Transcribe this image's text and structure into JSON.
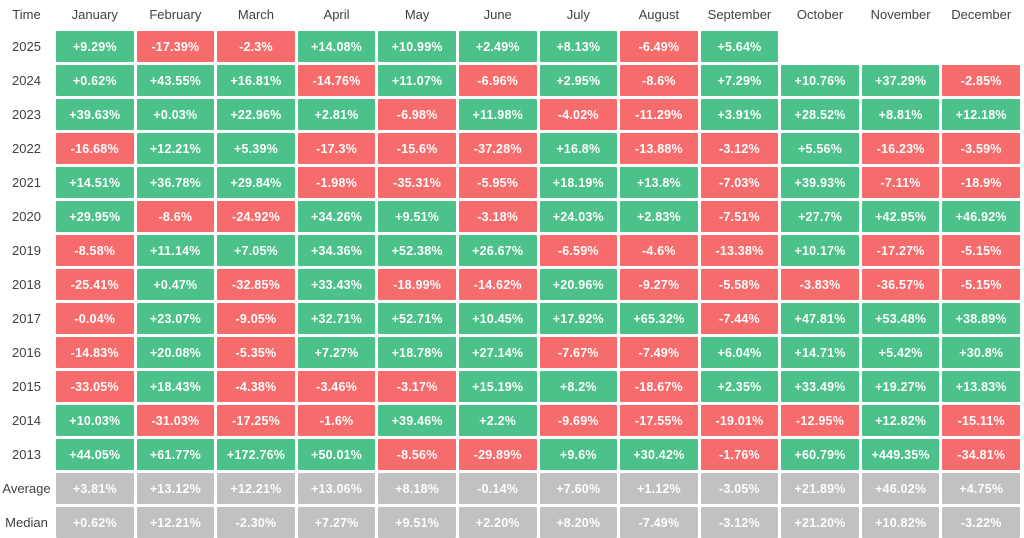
{
  "colors": {
    "positive": "#4cc189",
    "negative": "#f66c6c",
    "summary": "#c1c1c1",
    "cell_text": "#fdfdfd",
    "label_text": "#414141",
    "background": "#ffffff"
  },
  "table": {
    "time_header": "Time",
    "columns": [
      "January",
      "February",
      "March",
      "April",
      "May",
      "June",
      "July",
      "August",
      "September",
      "October",
      "November",
      "December"
    ],
    "rows": [
      {
        "label": "2025",
        "type": "year",
        "values": [
          "+9.29%",
          "-17.39%",
          "-2.3%",
          "+14.08%",
          "+10.99%",
          "+2.49%",
          "+8.13%",
          "-6.49%",
          "+5.64%",
          "",
          "",
          ""
        ]
      },
      {
        "label": "2024",
        "type": "year",
        "values": [
          "+0.62%",
          "+43.55%",
          "+16.81%",
          "-14.76%",
          "+11.07%",
          "-6.96%",
          "+2.95%",
          "-8.6%",
          "+7.29%",
          "+10.76%",
          "+37.29%",
          "-2.85%"
        ]
      },
      {
        "label": "2023",
        "type": "year",
        "values": [
          "+39.63%",
          "+0.03%",
          "+22.96%",
          "+2.81%",
          "-6.98%",
          "+11.98%",
          "-4.02%",
          "-11.29%",
          "+3.91%",
          "+28.52%",
          "+8.81%",
          "+12.18%"
        ]
      },
      {
        "label": "2022",
        "type": "year",
        "values": [
          "-16.68%",
          "+12.21%",
          "+5.39%",
          "-17.3%",
          "-15.6%",
          "-37.28%",
          "+16.8%",
          "-13.88%",
          "-3.12%",
          "+5.56%",
          "-16.23%",
          "-3.59%"
        ]
      },
      {
        "label": "2021",
        "type": "year",
        "values": [
          "+14.51%",
          "+36.78%",
          "+29.84%",
          "-1.98%",
          "-35.31%",
          "-5.95%",
          "+18.19%",
          "+13.8%",
          "-7.03%",
          "+39.93%",
          "-7.11%",
          "-18.9%"
        ]
      },
      {
        "label": "2020",
        "type": "year",
        "values": [
          "+29.95%",
          "-8.6%",
          "-24.92%",
          "+34.26%",
          "+9.51%",
          "-3.18%",
          "+24.03%",
          "+2.83%",
          "-7.51%",
          "+27.7%",
          "+42.95%",
          "+46.92%"
        ]
      },
      {
        "label": "2019",
        "type": "year",
        "values": [
          "-8.58%",
          "+11.14%",
          "+7.05%",
          "+34.36%",
          "+52.38%",
          "+26.67%",
          "-6.59%",
          "-4.6%",
          "-13.38%",
          "+10.17%",
          "-17.27%",
          "-5.15%"
        ]
      },
      {
        "label": "2018",
        "type": "year",
        "values": [
          "-25.41%",
          "+0.47%",
          "-32.85%",
          "+33.43%",
          "-18.99%",
          "-14.62%",
          "+20.96%",
          "-9.27%",
          "-5.58%",
          "-3.83%",
          "-36.57%",
          "-5.15%"
        ]
      },
      {
        "label": "2017",
        "type": "year",
        "values": [
          "-0.04%",
          "+23.07%",
          "-9.05%",
          "+32.71%",
          "+52.71%",
          "+10.45%",
          "+17.92%",
          "+65.32%",
          "-7.44%",
          "+47.81%",
          "+53.48%",
          "+38.89%"
        ]
      },
      {
        "label": "2016",
        "type": "year",
        "values": [
          "-14.83%",
          "+20.08%",
          "-5.35%",
          "+7.27%",
          "+18.78%",
          "+27.14%",
          "-7.67%",
          "-7.49%",
          "+6.04%",
          "+14.71%",
          "+5.42%",
          "+30.8%"
        ]
      },
      {
        "label": "2015",
        "type": "year",
        "values": [
          "-33.05%",
          "+18.43%",
          "-4.38%",
          "-3.46%",
          "-3.17%",
          "+15.19%",
          "+8.2%",
          "-18.67%",
          "+2.35%",
          "+33.49%",
          "+19.27%",
          "+13.83%"
        ]
      },
      {
        "label": "2014",
        "type": "year",
        "values": [
          "+10.03%",
          "-31.03%",
          "-17.25%",
          "-1.6%",
          "+39.46%",
          "+2.2%",
          "-9.69%",
          "-17.55%",
          "-19.01%",
          "-12.95%",
          "+12.82%",
          "-15.11%"
        ]
      },
      {
        "label": "2013",
        "type": "year",
        "values": [
          "+44.05%",
          "+61.77%",
          "+172.76%",
          "+50.01%",
          "-8.56%",
          "-29.89%",
          "+9.6%",
          "+30.42%",
          "-1.76%",
          "+60.79%",
          "+449.35%",
          "-34.81%"
        ]
      },
      {
        "label": "Average",
        "type": "summary",
        "values": [
          "+3.81%",
          "+13.12%",
          "+12.21%",
          "+13.06%",
          "+8.18%",
          "-0.14%",
          "+7.60%",
          "+1.12%",
          "-3.05%",
          "+21.89%",
          "+46.02%",
          "+4.75%"
        ]
      },
      {
        "label": "Median",
        "type": "summary",
        "values": [
          "+0.62%",
          "+12.21%",
          "-2.30%",
          "+7.27%",
          "+9.51%",
          "+2.20%",
          "+8.20%",
          "-7.49%",
          "-3.12%",
          "+21.20%",
          "+10.82%",
          "-3.22%"
        ]
      }
    ]
  },
  "chart_data": {
    "type": "heatmap",
    "categories": [
      "January",
      "February",
      "March",
      "April",
      "May",
      "June",
      "July",
      "August",
      "September",
      "October",
      "November",
      "December"
    ],
    "unit": "%",
    "legend_position": "none",
    "rows": [
      {
        "name": "2025",
        "values": [
          9.29,
          -17.39,
          -2.3,
          14.08,
          10.99,
          2.49,
          8.13,
          -6.49,
          5.64,
          null,
          null,
          null
        ]
      },
      {
        "name": "2024",
        "values": [
          0.62,
          43.55,
          16.81,
          -14.76,
          11.07,
          -6.96,
          2.95,
          -8.6,
          7.29,
          10.76,
          37.29,
          -2.85
        ]
      },
      {
        "name": "2023",
        "values": [
          39.63,
          0.03,
          22.96,
          2.81,
          -6.98,
          11.98,
          -4.02,
          -11.29,
          3.91,
          28.52,
          8.81,
          12.18
        ]
      },
      {
        "name": "2022",
        "values": [
          -16.68,
          12.21,
          5.39,
          -17.3,
          -15.6,
          -37.28,
          16.8,
          -13.88,
          -3.12,
          5.56,
          -16.23,
          -3.59
        ]
      },
      {
        "name": "2021",
        "values": [
          14.51,
          36.78,
          29.84,
          -1.98,
          -35.31,
          -5.95,
          18.19,
          13.8,
          -7.03,
          39.93,
          -7.11,
          -18.9
        ]
      },
      {
        "name": "2020",
        "values": [
          29.95,
          -8.6,
          -24.92,
          34.26,
          9.51,
          -3.18,
          24.03,
          2.83,
          -7.51,
          27.7,
          42.95,
          46.92
        ]
      },
      {
        "name": "2019",
        "values": [
          -8.58,
          11.14,
          7.05,
          34.36,
          52.38,
          26.67,
          -6.59,
          -4.6,
          -13.38,
          10.17,
          -17.27,
          -5.15
        ]
      },
      {
        "name": "2018",
        "values": [
          -25.41,
          0.47,
          -32.85,
          33.43,
          -18.99,
          -14.62,
          20.96,
          -9.27,
          -5.58,
          -3.83,
          -36.57,
          -5.15
        ]
      },
      {
        "name": "2017",
        "values": [
          -0.04,
          23.07,
          -9.05,
          32.71,
          52.71,
          10.45,
          17.92,
          65.32,
          -7.44,
          47.81,
          53.48,
          38.89
        ]
      },
      {
        "name": "2016",
        "values": [
          -14.83,
          20.08,
          -5.35,
          7.27,
          18.78,
          27.14,
          -7.67,
          -7.49,
          6.04,
          14.71,
          5.42,
          30.8
        ]
      },
      {
        "name": "2015",
        "values": [
          -33.05,
          18.43,
          -4.38,
          -3.46,
          -3.17,
          15.19,
          8.2,
          -18.67,
          2.35,
          33.49,
          19.27,
          13.83
        ]
      },
      {
        "name": "2014",
        "values": [
          10.03,
          -31.03,
          -17.25,
          -1.6,
          39.46,
          2.2,
          -9.69,
          -17.55,
          -19.01,
          -12.95,
          12.82,
          -15.11
        ]
      },
      {
        "name": "2013",
        "values": [
          44.05,
          61.77,
          172.76,
          50.01,
          -8.56,
          -29.89,
          9.6,
          30.42,
          -1.76,
          60.79,
          449.35,
          -34.81
        ]
      },
      {
        "name": "Average",
        "values": [
          3.81,
          13.12,
          12.21,
          13.06,
          8.18,
          -0.14,
          7.6,
          1.12,
          -3.05,
          21.89,
          46.02,
          4.75
        ]
      },
      {
        "name": "Median",
        "values": [
          0.62,
          12.21,
          -2.3,
          7.27,
          9.51,
          2.2,
          8.2,
          -7.49,
          -3.12,
          21.2,
          10.82,
          -3.22
        ]
      }
    ]
  }
}
